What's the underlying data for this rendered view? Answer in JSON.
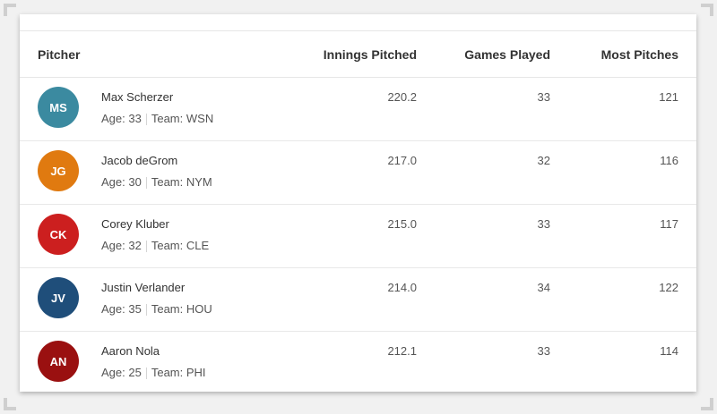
{
  "table": {
    "headers": {
      "pitcher": "Pitcher",
      "innings_pitched": "Innings Pitched",
      "games_played": "Games Played",
      "most_pitches": "Most Pitches"
    },
    "age_label": "Age:",
    "team_label": "Team:",
    "rows": [
      {
        "initials": "MS",
        "avatar_color": "#3b8aa0",
        "name": "Max Scherzer",
        "age": "33",
        "team": "WSN",
        "innings_pitched": "220.2",
        "games_played": "33",
        "most_pitches": "121"
      },
      {
        "initials": "JG",
        "avatar_color": "#e07a10",
        "name": "Jacob deGrom",
        "age": "30",
        "team": "NYM",
        "innings_pitched": "217.0",
        "games_played": "32",
        "most_pitches": "116"
      },
      {
        "initials": "CK",
        "avatar_color": "#cc1f1f",
        "name": "Corey Kluber",
        "age": "32",
        "team": "CLE",
        "innings_pitched": "215.0",
        "games_played": "33",
        "most_pitches": "117"
      },
      {
        "initials": "JV",
        "avatar_color": "#1f4e7a",
        "name": "Justin Verlander",
        "age": "35",
        "team": "HOU",
        "innings_pitched": "214.0",
        "games_played": "34",
        "most_pitches": "122"
      },
      {
        "initials": "AN",
        "avatar_color": "#9a1010",
        "name": "Aaron Nola",
        "age": "25",
        "team": "PHI",
        "innings_pitched": "212.1",
        "games_played": "33",
        "most_pitches": "114"
      }
    ]
  }
}
